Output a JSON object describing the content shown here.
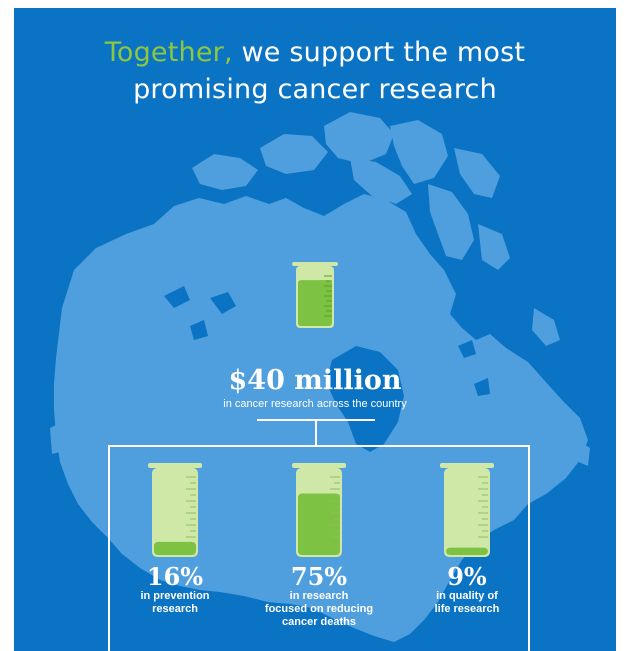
{
  "title": {
    "accent": "Together,",
    "line1_rest": " we support the most",
    "line2": "promising cancer research"
  },
  "hero": {
    "amount": "$40 million",
    "caption": "in cancer research across the country",
    "fill_fraction": 0.85
  },
  "stats": [
    {
      "pct": "16%",
      "desc": "in prevention\nresearch",
      "fill_fraction": 0.16
    },
    {
      "pct": "75%",
      "desc": "in research\nfocused on reducing\ncancer deaths",
      "fill_fraction": 0.75
    },
    {
      "pct": "9%",
      "desc": "in quality of\nlife research",
      "fill_fraction": 0.09
    }
  ],
  "colors": {
    "background": "#0a73c4",
    "map": "#4f9fde",
    "accent_green": "#8dc63f",
    "liquid": "#7dc242",
    "beaker_glass": "#cfe8a8",
    "text": "#ffffff"
  }
}
